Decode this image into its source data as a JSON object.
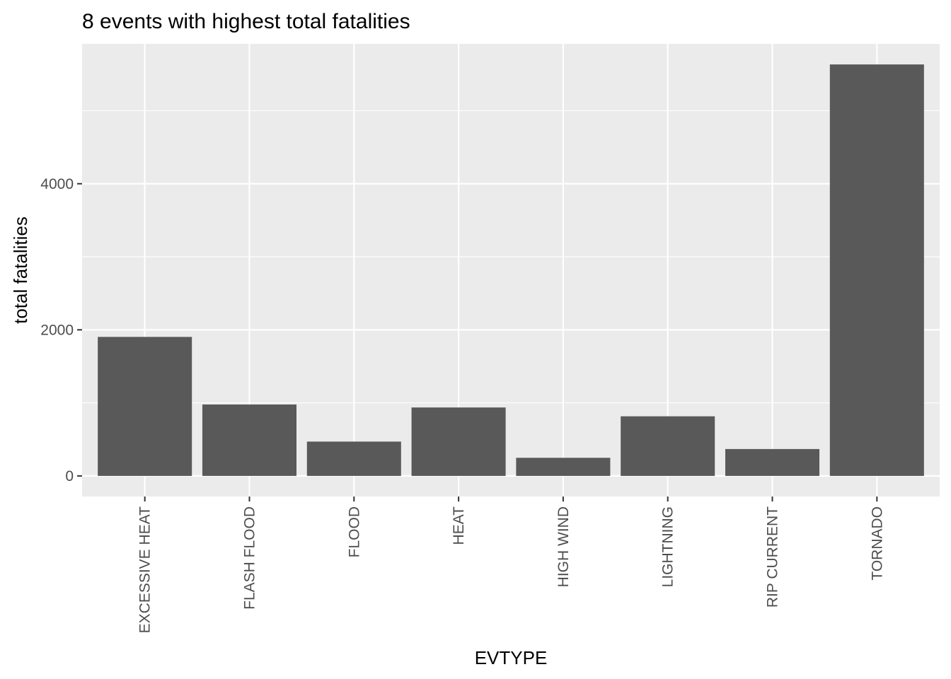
{
  "chart_data": {
    "type": "bar",
    "title": "8 events with highest total fatalities",
    "xlabel": "EVTYPE",
    "ylabel": "total fatalities",
    "categories": [
      "EXCESSIVE HEAT",
      "FLASH FLOOD",
      "FLOOD",
      "HEAT",
      "HIGH WIND",
      "LIGHTNING",
      "RIP CURRENT",
      "TORNADO"
    ],
    "values": [
      1903,
      978,
      470,
      937,
      248,
      816,
      368,
      5633
    ],
    "y_ticks": [
      0,
      2000,
      4000
    ],
    "y_tick_labels": [
      "0",
      "2000",
      "4000"
    ],
    "ylim": [
      -282,
      5915
    ],
    "grid": true,
    "bar_color": "#595959",
    "panel_color": "#ebebeb",
    "grid_color": "#ffffff"
  }
}
